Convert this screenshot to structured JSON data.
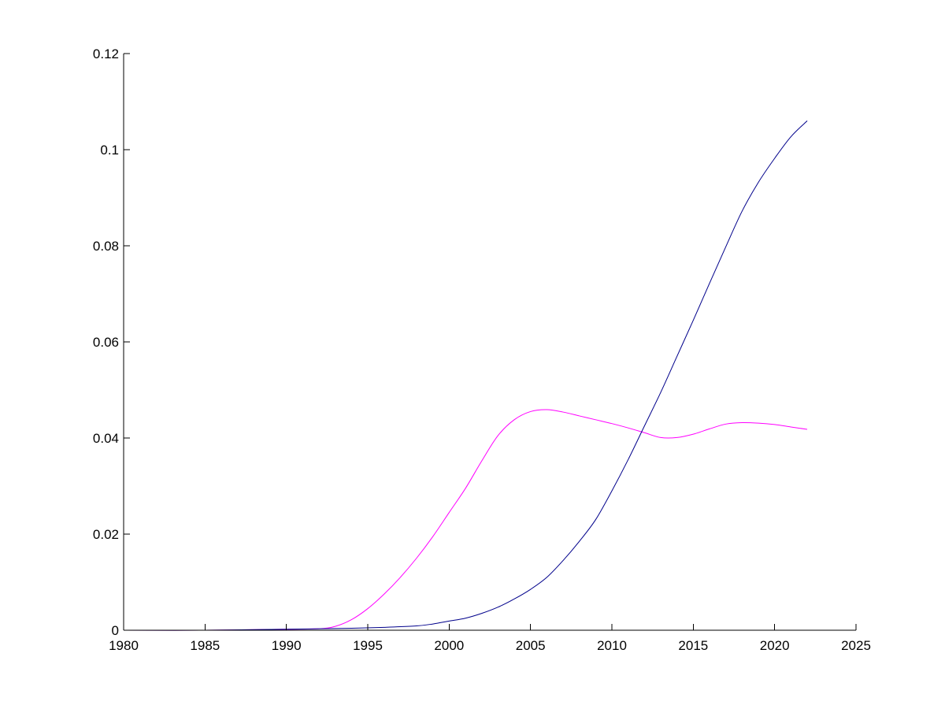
{
  "chart_data": {
    "type": "line",
    "title": "",
    "xlabel": "",
    "ylabel": "",
    "xlim": [
      1980,
      2025
    ],
    "ylim": [
      0,
      0.12
    ],
    "x_ticks": [
      1980,
      1985,
      1990,
      1995,
      2000,
      2005,
      2010,
      2015,
      2020,
      2025
    ],
    "x_tick_labels": [
      "1980",
      "1985",
      "1990",
      "1995",
      "2000",
      "2005",
      "2010",
      "2015",
      "2020",
      "2025"
    ],
    "y_ticks": [
      0,
      0.02,
      0.04,
      0.06,
      0.08,
      0.1,
      0.12
    ],
    "y_tick_labels": [
      "0",
      "0.02",
      "0.04",
      "0.06",
      "0.08",
      "0.1",
      "0.12"
    ],
    "grid": false,
    "legend": "none",
    "series": [
      {
        "color": "#ff00ff",
        "x": [
          1980,
          1985,
          1990,
          1992,
          1993,
          1994,
          1995,
          1996,
          1997,
          1998,
          1999,
          2000,
          2001,
          2002,
          2003,
          2004,
          2005,
          2006,
          2007,
          2008,
          2009,
          2010,
          2011,
          2012,
          2013,
          2014,
          2015,
          2016,
          2017,
          2018,
          2019,
          2020,
          2021,
          2022
        ],
        "y": [
          0,
          0,
          0.0002,
          0.0003,
          0.0008,
          0.0022,
          0.0045,
          0.0075,
          0.011,
          0.015,
          0.0195,
          0.0245,
          0.0295,
          0.0352,
          0.0405,
          0.0438,
          0.0455,
          0.0459,
          0.0454,
          0.0446,
          0.0438,
          0.043,
          0.0421,
          0.0411,
          0.0401,
          0.0401,
          0.0408,
          0.0419,
          0.0429,
          0.0432,
          0.0431,
          0.0428,
          0.0423,
          0.0418
        ]
      },
      {
        "color": "#00008b",
        "x": [
          1980,
          1985,
          1990,
          1992,
          1994,
          1996,
          1998,
          1999,
          2000,
          2001,
          2002,
          2003,
          2004,
          2005,
          2006,
          2007,
          2008,
          2009,
          2010,
          2011,
          2012,
          2013,
          2014,
          2015,
          2016,
          2017,
          2018,
          2019,
          2020,
          2021,
          2022
        ],
        "y": [
          0,
          0,
          0.0002,
          0.0003,
          0.0004,
          0.0006,
          0.0009,
          0.0013,
          0.0019,
          0.0025,
          0.0035,
          0.0048,
          0.0065,
          0.0085,
          0.011,
          0.0145,
          0.0185,
          0.023,
          0.029,
          0.0355,
          0.0425,
          0.0495,
          0.057,
          0.0645,
          0.0722,
          0.0798,
          0.0872,
          0.0932,
          0.0982,
          0.1027,
          0.106
        ]
      }
    ]
  }
}
